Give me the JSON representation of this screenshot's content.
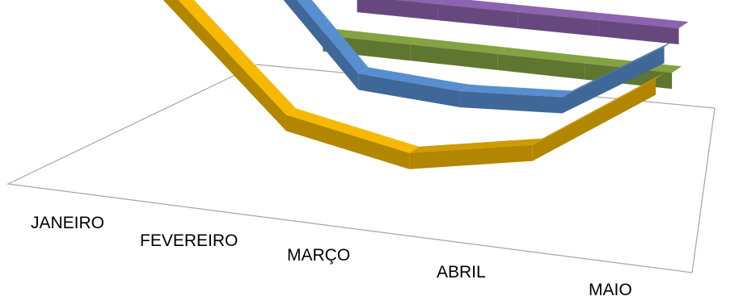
{
  "chart_data": {
    "type": "line",
    "variant": "3d-ribbon",
    "title": "",
    "xlabel": "",
    "ylabel": "",
    "categories": [
      "JANEIRO",
      "FEVEREIRO",
      "MARÇO",
      "ABRIL",
      "MAIO"
    ],
    "ylim": [
      0,
      100
    ],
    "grid": false,
    "legend": "none",
    "series": [
      {
        "color": "#E0A800",
        "values": [
          90,
          30,
          18,
          30,
          72
        ]
      },
      {
        "color": "#4F81BD",
        "values": [
          95,
          38,
          35,
          38,
          70
        ]
      },
      {
        "color": "#77933C",
        "values": [
          40,
          40,
          40,
          40,
          40
        ]
      },
      {
        "color": "#7F5A9E",
        "values": [
          48,
          48,
          48,
          48,
          48
        ]
      }
    ]
  }
}
